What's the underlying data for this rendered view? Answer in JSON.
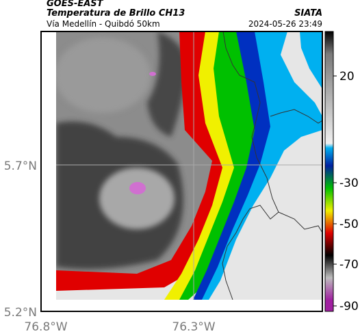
{
  "header": {
    "satellite": "GOES-EAST",
    "product": "Temperatura de Brillo CH13",
    "region": "Vía Medellín - Quibdó 50km",
    "organization": "SIATA",
    "datetime": "2024-05-26 23:49"
  },
  "axes": {
    "x_ticks": [
      "76.8°W",
      "76.3°W"
    ],
    "y_ticks": [
      "5.7°N",
      "5.2°N"
    ]
  },
  "colorbar": {
    "ticks": [
      "20",
      "-30",
      "-50",
      "-70",
      "-90"
    ],
    "stops": [
      {
        "value": 30,
        "color": "#000000"
      },
      {
        "value": 20,
        "color": "#7a7a7a"
      },
      {
        "value": -20,
        "color": "#f0f0f0"
      },
      {
        "value": -22,
        "color": "#00b0f0"
      },
      {
        "value": -30,
        "color": "#0020a0"
      },
      {
        "value": -40,
        "color": "#00c000"
      },
      {
        "value": -50,
        "color": "#f0f000"
      },
      {
        "value": -60,
        "color": "#e00000"
      },
      {
        "value": -70,
        "color": "#000000"
      },
      {
        "value": -80,
        "color": "#bdbdbd"
      },
      {
        "value": -90,
        "color": "#a020a0"
      }
    ]
  },
  "colors": {
    "clear_sky": "#e6e6e6",
    "warm_cloud": "#8c8c8c",
    "cold_core": "#d070d0",
    "cloud_edge_red": "#e00000",
    "cloud_yellow": "#f0f000",
    "cloud_green": "#00c000",
    "cloud_blue": "#0030c0",
    "cloud_cyan": "#00b0f0",
    "crosshair": "#aaaaaa",
    "border_line": "#333333"
  }
}
